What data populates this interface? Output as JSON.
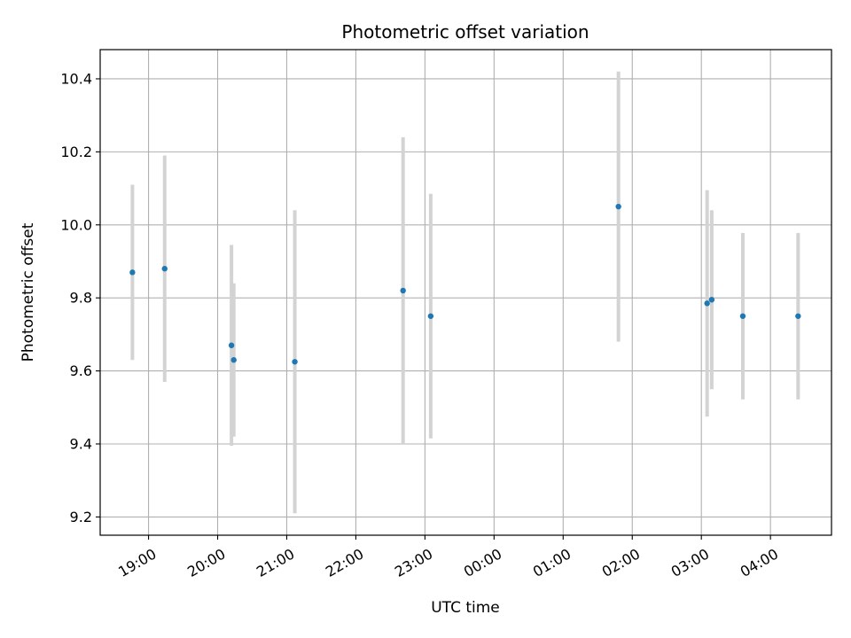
{
  "chart_data": {
    "type": "scatter",
    "title": "Photometric offset variation",
    "xlabel": "UTC time",
    "ylabel": "Photometric offset",
    "x_axis": "time",
    "xlim": [
      "18:18",
      "04:53"
    ],
    "ylim": [
      9.15,
      10.48
    ],
    "x_ticks": [
      "19:00",
      "20:00",
      "21:00",
      "22:00",
      "23:00",
      "00:00",
      "01:00",
      "02:00",
      "03:00",
      "04:00"
    ],
    "y_ticks": [
      9.2,
      9.4,
      9.6,
      9.8,
      10.0,
      10.2,
      10.4
    ],
    "y_tick_labels": [
      "9.2",
      "9.4",
      "9.6",
      "9.8",
      "10.0",
      "10.2",
      "10.4"
    ],
    "grid": true,
    "marker_color": "#1f77b4",
    "errorbar_color": "#d3d3d3",
    "points": [
      {
        "time": "18:46",
        "y": 9.87,
        "err": 0.24
      },
      {
        "time": "19:14",
        "y": 9.88,
        "err": 0.31
      },
      {
        "time": "20:12",
        "y": 9.67,
        "err": 0.275
      },
      {
        "time": "20:14",
        "y": 9.63,
        "err": 0.21
      },
      {
        "time": "21:07",
        "y": 9.625,
        "err": 0.415
      },
      {
        "time": "22:41",
        "y": 9.82,
        "err": 0.42
      },
      {
        "time": "23:05",
        "y": 9.75,
        "err": 0.335
      },
      {
        "time": "01:48",
        "y": 10.05,
        "err": 0.37
      },
      {
        "time": "03:05",
        "y": 9.785,
        "err": 0.31
      },
      {
        "time": "03:09",
        "y": 9.795,
        "err": 0.245
      },
      {
        "time": "03:36",
        "y": 9.75,
        "err": 0.228
      },
      {
        "time": "04:24",
        "y": 9.75,
        "err": 0.228
      }
    ]
  }
}
